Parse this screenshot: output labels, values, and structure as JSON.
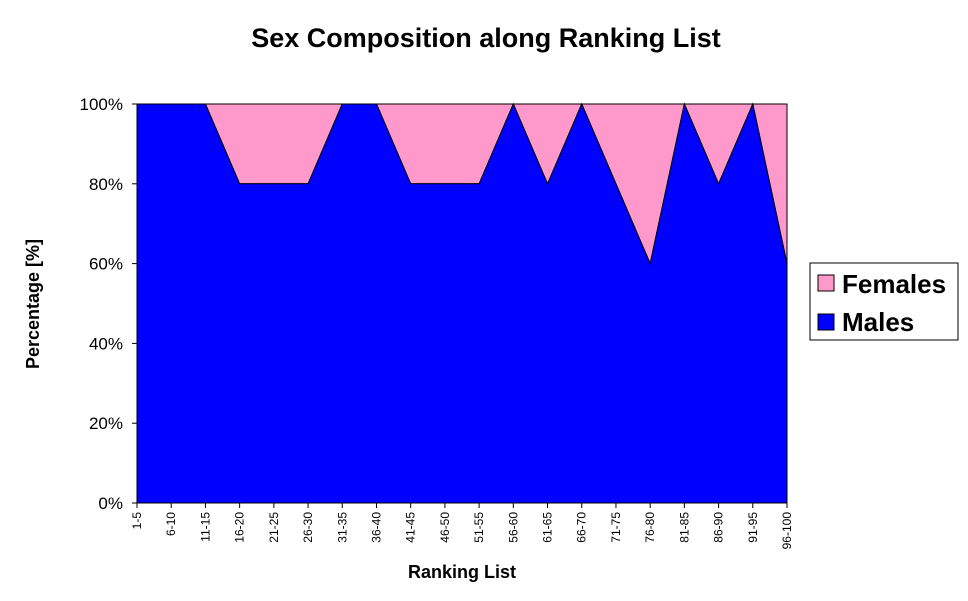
{
  "chart_data": {
    "type": "area",
    "stacked": "percent",
    "title": "Sex Composition along Ranking List",
    "xlabel": "Ranking List",
    "ylabel": "Percentage [%]",
    "categories": [
      "1-5",
      "6-10",
      "11-15",
      "16-20",
      "21-25",
      "26-30",
      "31-35",
      "36-40",
      "41-45",
      "46-50",
      "51-55",
      "56-60",
      "61-65",
      "66-70",
      "71-75",
      "76-80",
      "81-85",
      "86-90",
      "91-95",
      "96-100"
    ],
    "yticks": [
      "0%",
      "20%",
      "40%",
      "60%",
      "80%",
      "100%"
    ],
    "ylim": [
      0,
      100
    ],
    "grid": false,
    "legend_position": "right",
    "series": [
      {
        "name": "Males",
        "color": "#0000ff",
        "values": [
          100,
          100,
          100,
          80,
          80,
          80,
          100,
          100,
          80,
          80,
          80,
          100,
          80,
          100,
          80,
          60,
          100,
          80,
          100,
          60
        ]
      },
      {
        "name": "Females",
        "color": "#ff99cc",
        "values": [
          0,
          0,
          0,
          20,
          20,
          20,
          0,
          0,
          20,
          20,
          20,
          0,
          20,
          0,
          20,
          40,
          0,
          20,
          0,
          40
        ]
      }
    ],
    "legend": [
      "Females",
      "Males"
    ]
  }
}
